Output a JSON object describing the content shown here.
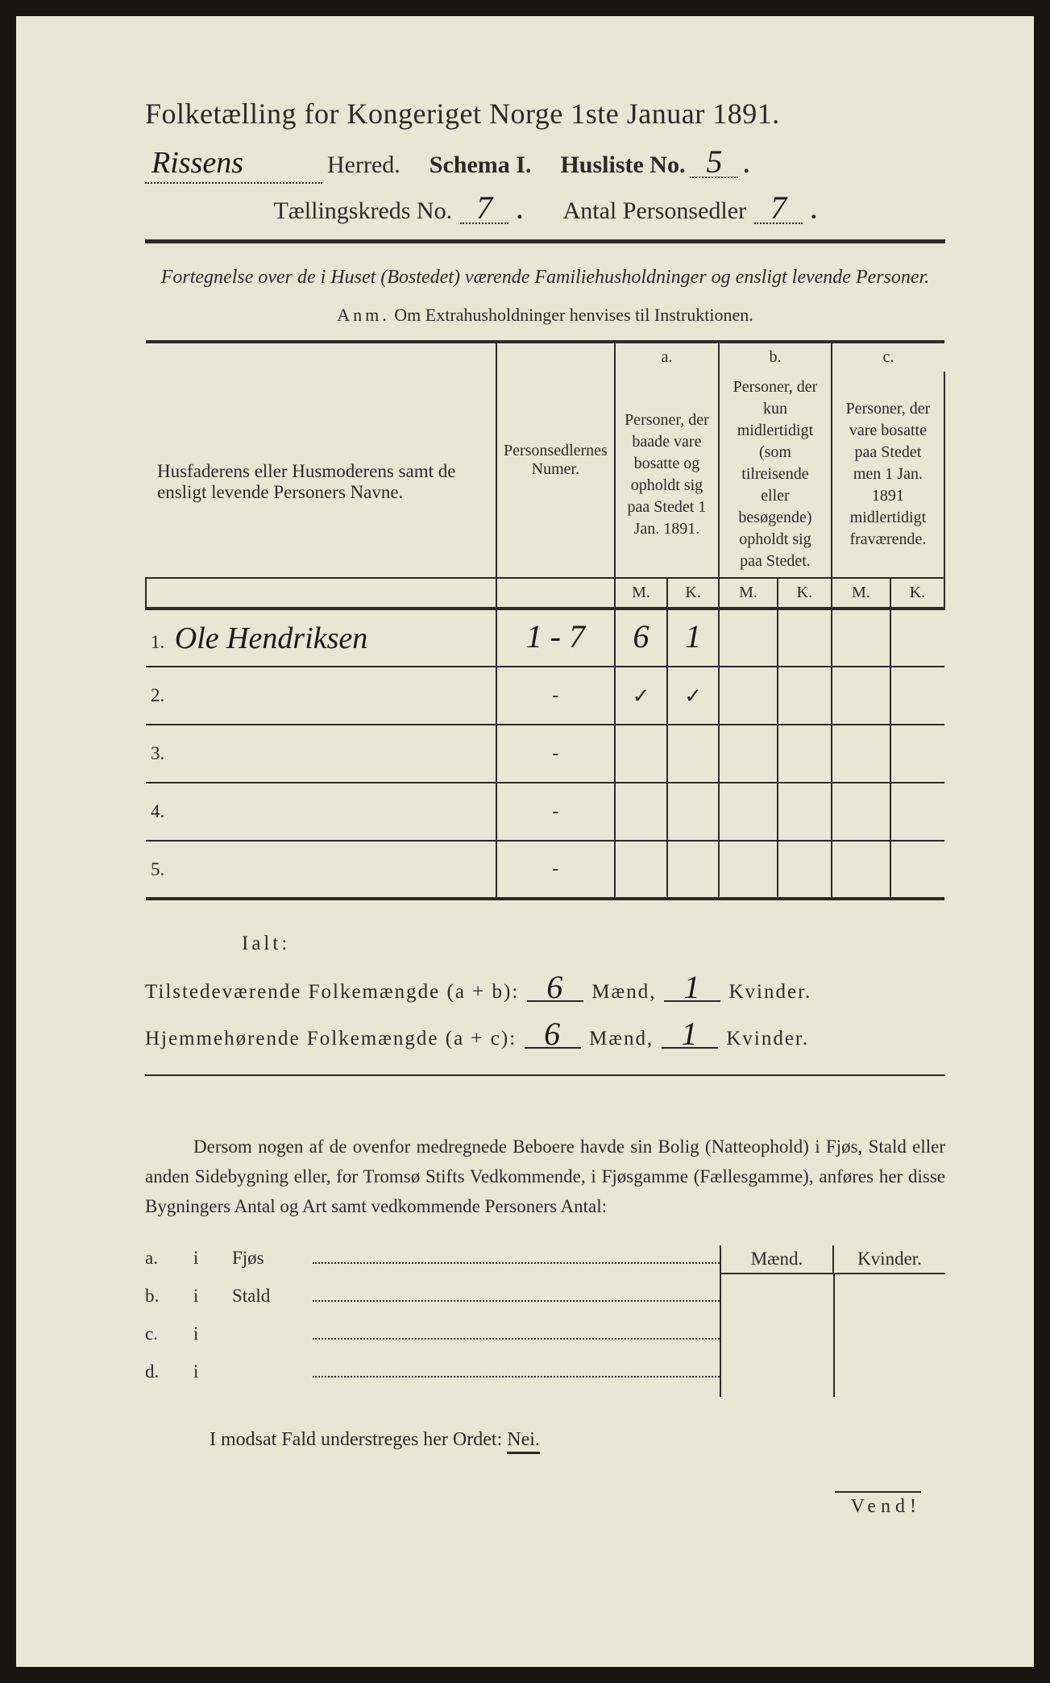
{
  "header": {
    "title": "Folketælling for Kongeriget Norge 1ste Januar 1891.",
    "herred_value": "Rissens",
    "herred_label": "Herred.",
    "schema_label": "Schema I.",
    "husliste_label": "Husliste No.",
    "husliste_value": "5",
    "kreds_label": "Tællingskreds No.",
    "kreds_value": "7",
    "antal_label": "Antal Personsedler",
    "antal_value": "7"
  },
  "subtitle": "Fortegnelse over de i Huset (Bostedet) værende Familiehusholdninger og ensligt levende Personer.",
  "anm": {
    "lead": "Anm.",
    "text": "Om Extrahusholdninger henvises til Instruktionen."
  },
  "table": {
    "col_names": "Husfaderens eller Husmoderens samt de ensligt levende Personers Navne.",
    "col_personsedler": "Personsedlernes Numer.",
    "abc": {
      "a": "a.",
      "b": "b.",
      "c": "c."
    },
    "col_a": "Personer, der baade vare bosatte og opholdt sig paa Stedet 1 Jan. 1891.",
    "col_b": "Personer, der kun midlertidigt (som tilreisende eller besøgende) opholdt sig paa Stedet.",
    "col_c": "Personer, der vare bosatte paa Stedet men 1 Jan. 1891 midlertidigt fraværende.",
    "mk": {
      "m": "M.",
      "k": "K."
    },
    "rows": [
      {
        "num": "1.",
        "name": "Ole Hendriksen",
        "sedler": "1 - 7",
        "a_m": "6",
        "a_k": "1",
        "b_m": "",
        "b_k": "",
        "c_m": "",
        "c_k": ""
      },
      {
        "num": "2.",
        "name": "",
        "sedler": "-",
        "a_m": "✓",
        "a_k": "✓",
        "b_m": "",
        "b_k": "",
        "c_m": "",
        "c_k": ""
      },
      {
        "num": "3.",
        "name": "",
        "sedler": "-",
        "a_m": "",
        "a_k": "",
        "b_m": "",
        "b_k": "",
        "c_m": "",
        "c_k": ""
      },
      {
        "num": "4.",
        "name": "",
        "sedler": "-",
        "a_m": "",
        "a_k": "",
        "b_m": "",
        "b_k": "",
        "c_m": "",
        "c_k": ""
      },
      {
        "num": "5.",
        "name": "",
        "sedler": "-",
        "a_m": "",
        "a_k": "",
        "b_m": "",
        "b_k": "",
        "c_m": "",
        "c_k": ""
      }
    ]
  },
  "totals": {
    "ialt": "Ialt:",
    "line1_label": "Tilstedeværende Folkemængde (a + b):",
    "line2_label": "Hjemmehørende Folkemængde (a + c):",
    "maend": "Mænd,",
    "kvinder": "Kvinder.",
    "v1_m": "6",
    "v1_k": "1",
    "v2_m": "6",
    "v2_k": "1"
  },
  "paragraph": "Dersom nogen af de ovenfor medregnede Beboere havde sin Bolig (Natteophold) i Fjøs, Stald eller anden Sidebygning eller, for Tromsø Stifts Vedkommende, i Fjøsgamme (Fællesgamme), anføres her disse Bygningers Antal og Art samt vedkommende Personers Antal:",
  "mk": {
    "maend": "Mænd.",
    "kvinder": "Kvinder.",
    "rows": [
      {
        "lbl": "a.",
        "i": "i",
        "name": "Fjøs"
      },
      {
        "lbl": "b.",
        "i": "i",
        "name": "Stald"
      },
      {
        "lbl": "c.",
        "i": "i",
        "name": ""
      },
      {
        "lbl": "d.",
        "i": "i",
        "name": ""
      }
    ]
  },
  "nei": {
    "pre": "I modsat Fald understreges her Ordet:",
    "word": "Nei."
  },
  "vend": "Vend!"
}
